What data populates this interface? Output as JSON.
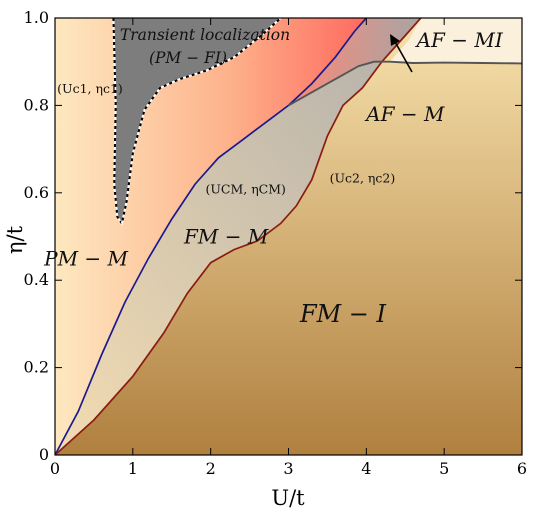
{
  "chart_data": {
    "type": "area",
    "xlabel": "U/t",
    "ylabel": "η/t",
    "xlim": [
      0,
      6
    ],
    "ylim": [
      0,
      1.0
    ],
    "x_ticks": [
      "0",
      "1",
      "2",
      "3",
      "4",
      "5",
      "6"
    ],
    "y_ticks": [
      "0",
      "0.2",
      "0.4",
      "0.6",
      "0.8",
      "1.0"
    ],
    "grid": false,
    "legend": "none",
    "colors": {
      "pm_m_left": "#fde3b5",
      "pm_m_right": "#ff7b6a",
      "fm_m": "#c9c2b0",
      "fm_i_top": "#f4d8a2",
      "fm_i_bottom": "#b17f43",
      "af_mi": "#fbeed6",
      "transient": "#7a7a7a",
      "af_m": "#9a8f95",
      "boundary_fm_m": "#1a1a8f",
      "boundary_fm_i": "#8a1a12",
      "boundary_af": "#4a4a4a"
    },
    "series": [
      {
        "values": [
          [
            0,
            0
          ],
          [
            0.3,
            0.1
          ],
          [
            0.6,
            0.23
          ],
          [
            0.9,
            0.35
          ],
          [
            1.2,
            0.45
          ],
          [
            1.5,
            0.54
          ],
          [
            1.8,
            0.62
          ],
          [
            2.1,
            0.68
          ],
          [
            2.4,
            0.72
          ],
          [
            2.7,
            0.76
          ],
          [
            3.0,
            0.8
          ],
          [
            3.3,
            0.85
          ],
          [
            3.6,
            0.91
          ],
          [
            3.85,
            0.97
          ],
          [
            4.0,
            1.0
          ]
        ]
      },
      {
        "values": [
          [
            0,
            0
          ],
          [
            0.5,
            0.08
          ],
          [
            1.0,
            0.18
          ],
          [
            1.4,
            0.28
          ],
          [
            1.7,
            0.37
          ],
          [
            2.0,
            0.44
          ],
          [
            2.3,
            0.47
          ],
          [
            2.6,
            0.49
          ],
          [
            2.9,
            0.53
          ],
          [
            3.1,
            0.57
          ],
          [
            3.3,
            0.63
          ],
          [
            3.5,
            0.73
          ],
          [
            3.7,
            0.8
          ],
          [
            3.95,
            0.84
          ],
          [
            4.2,
            0.9
          ],
          [
            4.5,
            0.96
          ],
          [
            4.7,
            1.0
          ]
        ]
      },
      {
        "values": [
          [
            3.0,
            0.8
          ],
          [
            3.3,
            0.83
          ],
          [
            3.6,
            0.86
          ],
          [
            3.9,
            0.89
          ],
          [
            4.1,
            0.9
          ],
          [
            4.3,
            0.9
          ],
          [
            4.6,
            0.897
          ],
          [
            5.0,
            0.898
          ],
          [
            5.5,
            0.897
          ],
          [
            6.0,
            0.896
          ]
        ]
      },
      {
        "values": [
          [
            0.75,
            1.0
          ],
          [
            0.78,
            0.8
          ],
          [
            0.76,
            0.62
          ],
          [
            0.8,
            0.545
          ],
          [
            0.86,
            0.53
          ],
          [
            0.92,
            0.58
          ],
          [
            1.0,
            0.69
          ],
          [
            1.15,
            0.79
          ],
          [
            1.35,
            0.84
          ],
          [
            1.6,
            0.86
          ],
          [
            1.95,
            0.88
          ],
          [
            2.3,
            0.91
          ],
          [
            2.65,
            0.96
          ],
          [
            2.9,
            1.0
          ]
        ]
      }
    ],
    "regions": [
      {
        "label": "PM − M",
        "x": 0.4,
        "y": 0.45
      },
      {
        "label": "FM − M",
        "x": 2.2,
        "y": 0.5
      },
      {
        "label": "FM − I",
        "x": 3.7,
        "y": 0.32
      },
      {
        "label": "AF − MI",
        "x": 5.2,
        "y": 0.95
      },
      {
        "label": "AF − M",
        "x": 4.5,
        "y": 0.78
      }
    ],
    "transient_label_line1": "Transient localization",
    "transient_label_line2": "(PM − FI)",
    "points": [
      {
        "label": "(Uc1, ηc1)",
        "x": 0.78,
        "y": 1.0
      },
      {
        "label": "(UCM, ηCM)",
        "x": 3.0,
        "y": 0.8
      },
      {
        "label": "(Uc2, ηc2)",
        "x": 3.95,
        "y": 0.84
      }
    ],
    "annotations": [
      {
        "label": "(Uc1, ηc1)",
        "x": 0.45,
        "y": 0.84
      },
      {
        "label": "(UCM, ηCM)",
        "x": 2.45,
        "y": 0.61
      },
      {
        "label": "(Uc2, ηc2)",
        "x": 3.95,
        "y": 0.635
      }
    ]
  }
}
